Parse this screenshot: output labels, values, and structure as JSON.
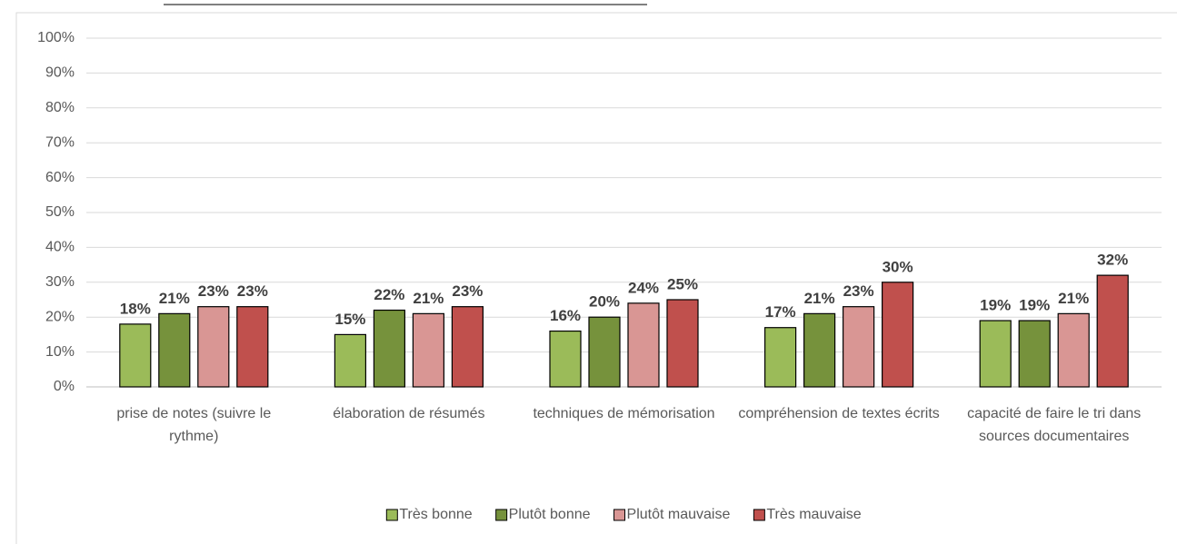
{
  "chart_data": {
    "type": "bar",
    "categories": [
      "prise de notes (suivre le rythme)",
      "élaboration de résumés",
      "techniques de mémorisation",
      "compréhension de textes écrits",
      "capacité de faire le tri dans sources documentaires"
    ],
    "series": [
      {
        "name": "Très bonne",
        "color": "#9bbb59",
        "values": [
          18,
          15,
          16,
          17,
          19
        ],
        "value_labels": [
          "18%",
          "15%",
          "16%",
          "17%",
          "19%"
        ]
      },
      {
        "name": "Plutôt bonne",
        "color": "#76923c",
        "values": [
          21,
          22,
          20,
          21,
          19
        ],
        "value_labels": [
          "21%",
          "22%",
          "20%",
          "21%",
          "19%"
        ]
      },
      {
        "name": "Plutôt mauvaise",
        "color": "#d99694",
        "values": [
          23,
          21,
          24,
          23,
          21
        ],
        "value_labels": [
          "23%",
          "21%",
          "24%",
          "23%",
          "21%"
        ]
      },
      {
        "name": "Très mauvaise",
        "color": "#c0504d",
        "values": [
          23,
          23,
          25,
          30,
          32
        ],
        "value_labels": [
          "23%",
          "23%",
          "25%",
          "30%",
          "32%"
        ]
      }
    ],
    "ylim": [
      0,
      100
    ],
    "yticks": [
      {
        "value": 0,
        "label": "0%"
      },
      {
        "value": 10,
        "label": "10%"
      },
      {
        "value": 20,
        "label": "20%"
      },
      {
        "value": 30,
        "label": "30%"
      },
      {
        "value": 40,
        "label": "40%"
      },
      {
        "value": 50,
        "label": "50%"
      },
      {
        "value": 60,
        "label": "60%"
      },
      {
        "value": 70,
        "label": "70%"
      },
      {
        "value": 80,
        "label": "80%"
      },
      {
        "value": 90,
        "label": "90%"
      },
      {
        "value": 100,
        "label": "100%"
      }
    ],
    "grid": true,
    "legend": "bottom"
  }
}
